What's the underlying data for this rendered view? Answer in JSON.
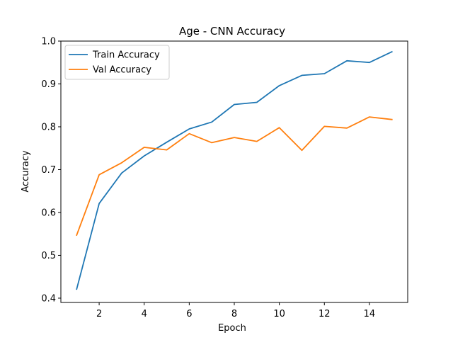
{
  "chart_data": {
    "type": "line",
    "title": "Age - CNN Accuracy",
    "xlabel": "Epoch",
    "ylabel": "Accuracy",
    "x": [
      1,
      2,
      3,
      4,
      5,
      6,
      7,
      8,
      9,
      10,
      11,
      12,
      13,
      14,
      15
    ],
    "xlim": [
      0.3,
      15.7
    ],
    "ylim": [
      0.39,
      1.0
    ],
    "xticks": [
      2,
      4,
      6,
      8,
      10,
      12,
      14
    ],
    "yticks": [
      0.4,
      0.5,
      0.6,
      0.7,
      0.8,
      0.9,
      1.0
    ],
    "xtick_labels": [
      "2",
      "4",
      "6",
      "8",
      "10",
      "12",
      "14"
    ],
    "ytick_labels": [
      "0.4",
      "0.5",
      "0.6",
      "0.7",
      "0.8",
      "0.9",
      "1.0"
    ],
    "grid": false,
    "legend_position": "top-left",
    "series": [
      {
        "name": "Train Accuracy",
        "color": "#1f77b4",
        "values": [
          0.421,
          0.621,
          0.692,
          0.732,
          0.764,
          0.795,
          0.811,
          0.852,
          0.857,
          0.896,
          0.92,
          0.924,
          0.954,
          0.95,
          0.975
        ]
      },
      {
        "name": "Val Accuracy",
        "color": "#ff7f0e",
        "values": [
          0.547,
          0.688,
          0.716,
          0.752,
          0.746,
          0.784,
          0.763,
          0.775,
          0.766,
          0.798,
          0.745,
          0.801,
          0.797,
          0.823,
          0.817
        ]
      }
    ]
  }
}
